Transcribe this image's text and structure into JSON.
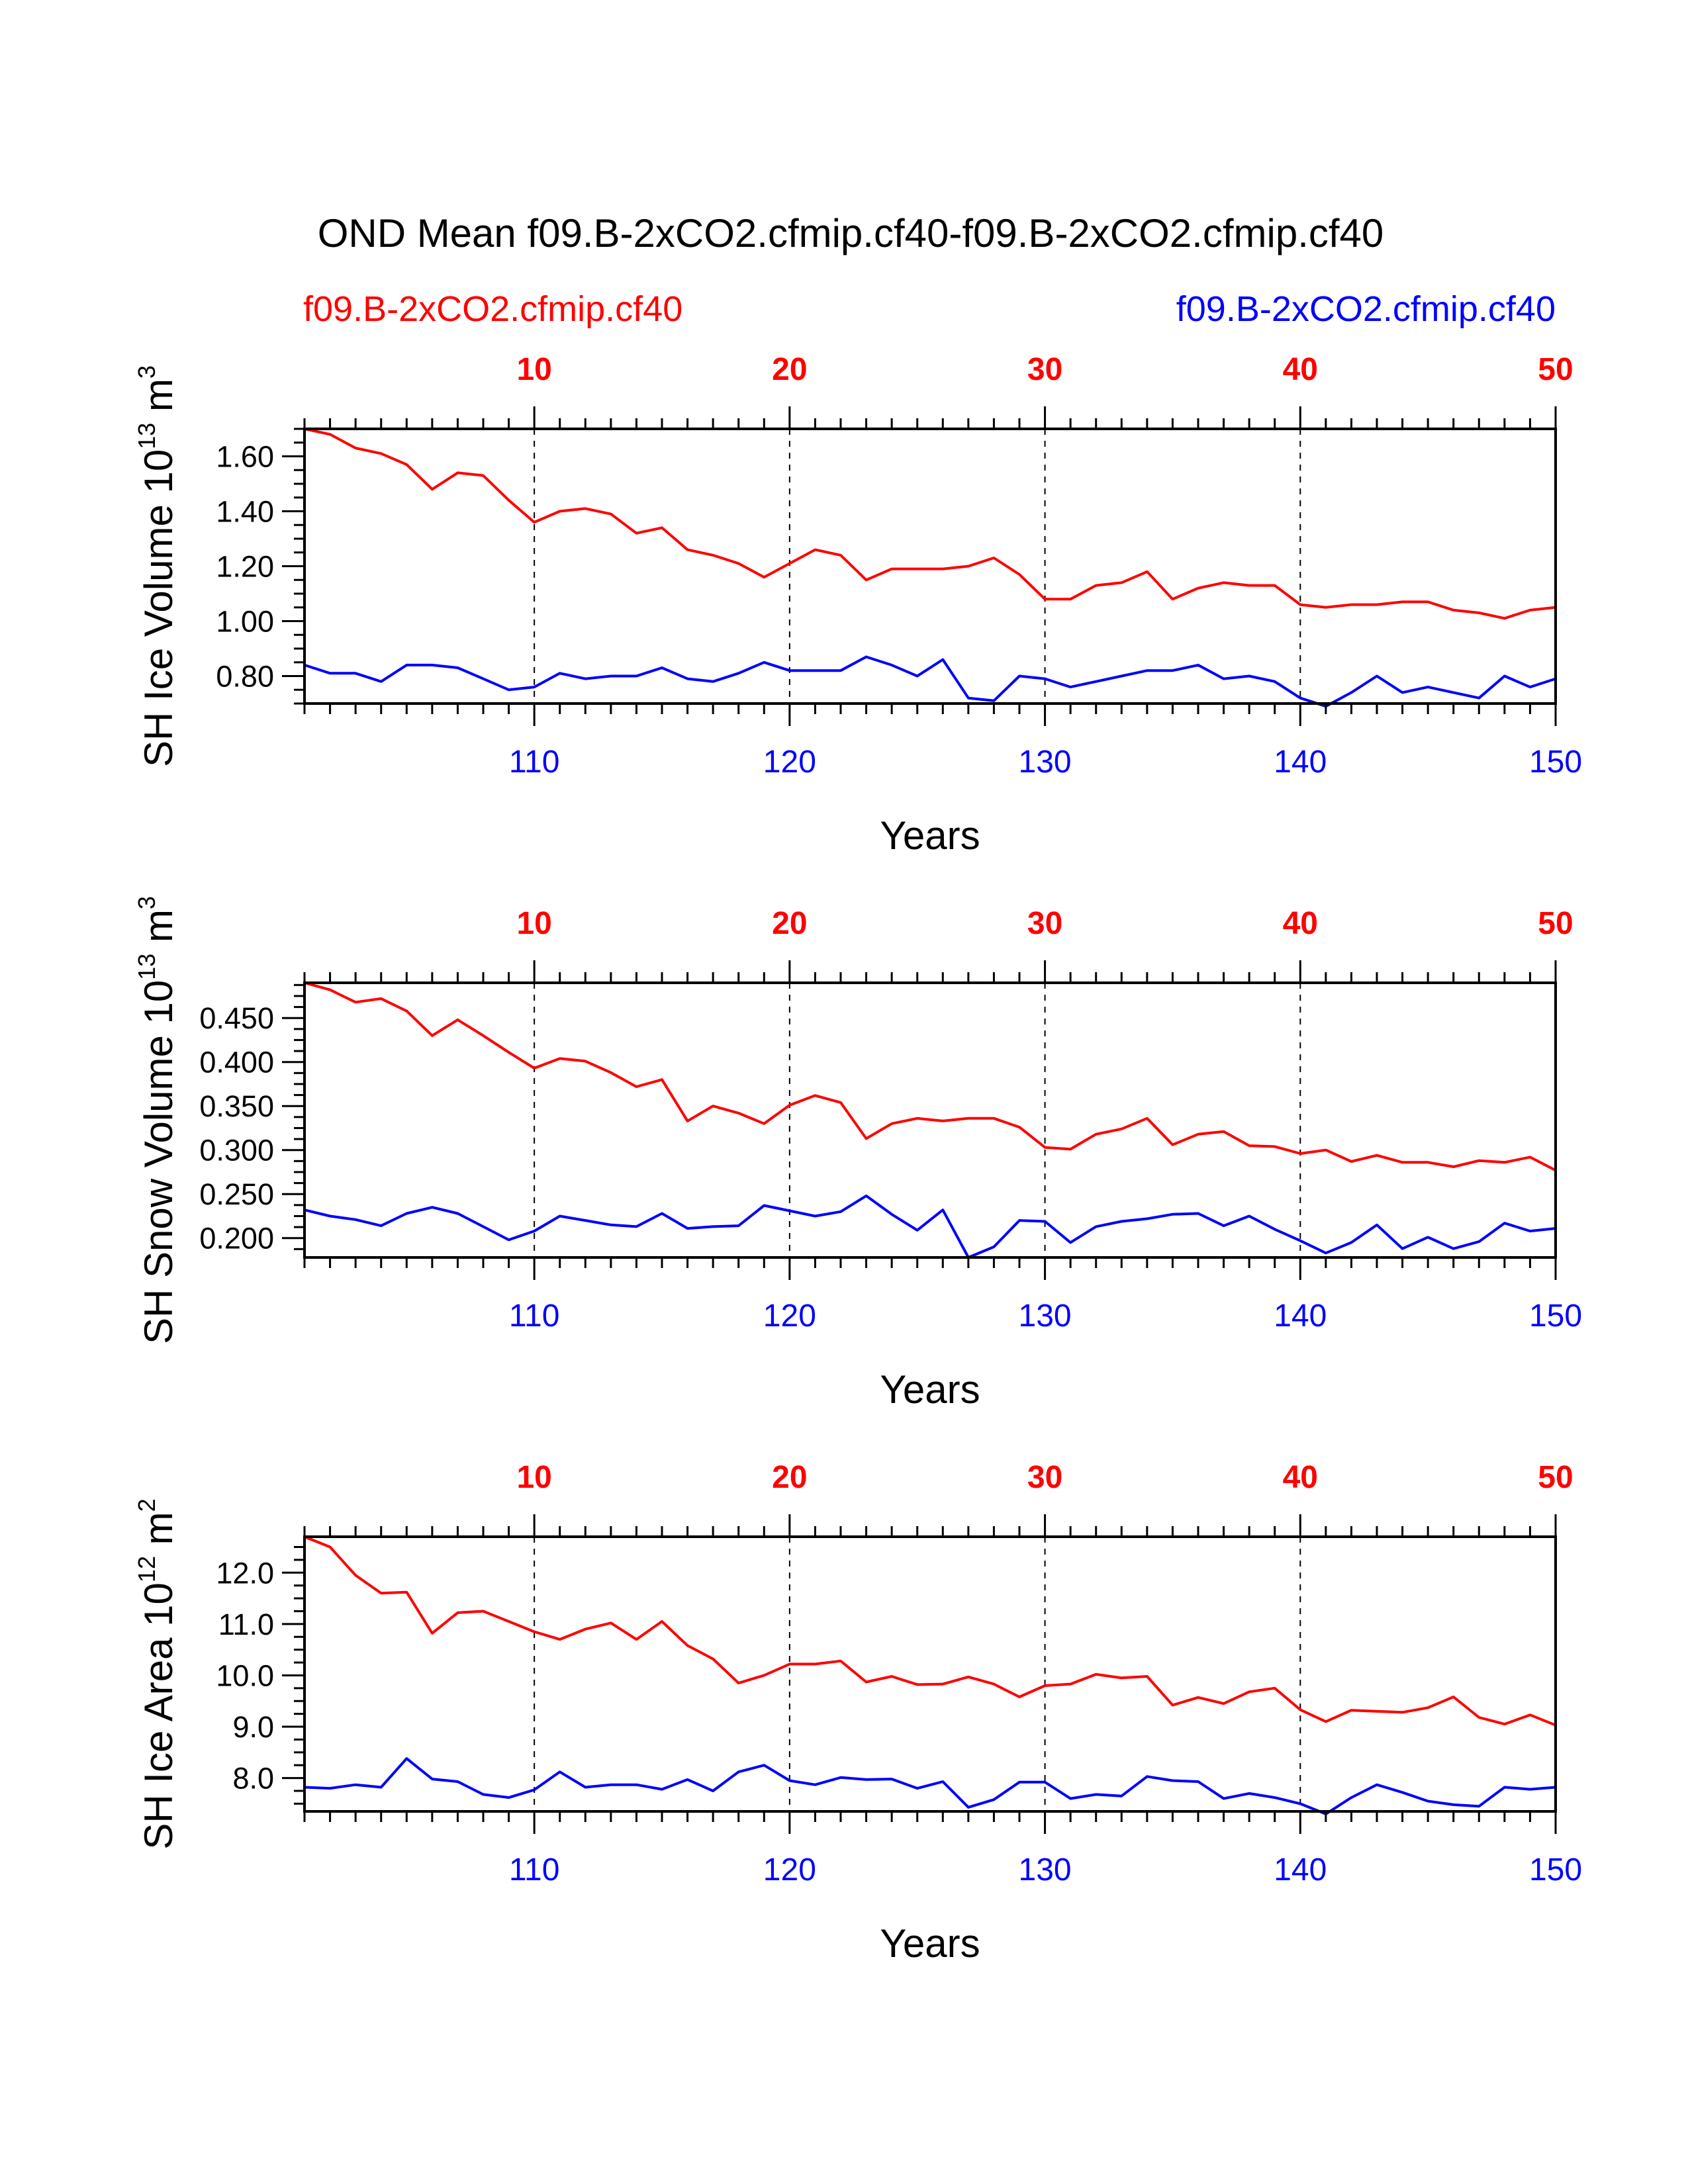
{
  "title": "OND Mean f09.B-2xCO2.cfmip.cf40-f09.B-2xCO2.cfmip.cf40",
  "legend": {
    "left": "f09.B-2xCO2.cfmip.cf40",
    "right": "f09.B-2xCO2.cfmip.cf40"
  },
  "colors": {
    "left_series": "#ff0000",
    "right_series": "#0000ff",
    "axis": "#000000"
  },
  "chart_data": [
    {
      "type": "line",
      "ylabel": "SH Ice Volume 10",
      "ylabel_exp": "13",
      "ylabel_unit": " m",
      "ylabel_unit_exp": "3",
      "xlabel": "Years",
      "xlim": [
        101,
        150
      ],
      "ylim": [
        0.7,
        1.7
      ],
      "yticks": [
        0.8,
        1.0,
        1.2,
        1.4,
        1.6
      ],
      "ytick_labels": [
        "0.80",
        "1.00",
        "1.20",
        "1.40",
        "1.60"
      ],
      "top_axis": {
        "ticks": [
          110,
          120,
          130,
          140,
          150
        ],
        "labels": [
          "10",
          "20",
          "30",
          "40",
          "50"
        ]
      },
      "bottom_axis": {
        "ticks": [
          110,
          120,
          130,
          140,
          150
        ],
        "labels": [
          "110",
          "120",
          "130",
          "140",
          "150"
        ]
      },
      "x": [
        101,
        102,
        103,
        104,
        105,
        106,
        107,
        108,
        109,
        110,
        111,
        112,
        113,
        114,
        115,
        116,
        117,
        118,
        119,
        120,
        121,
        122,
        123,
        124,
        125,
        126,
        127,
        128,
        129,
        130,
        131,
        132,
        133,
        134,
        135,
        136,
        137,
        138,
        139,
        140,
        141,
        142,
        143,
        144,
        145,
        146,
        147,
        148,
        149,
        150
      ],
      "series": [
        {
          "color": "#ff0000",
          "values": [
            1.7,
            1.68,
            1.63,
            1.61,
            1.57,
            1.48,
            1.54,
            1.53,
            1.44,
            1.36,
            1.4,
            1.41,
            1.39,
            1.32,
            1.34,
            1.26,
            1.24,
            1.21,
            1.16,
            1.21,
            1.26,
            1.24,
            1.15,
            1.19,
            1.19,
            1.19,
            1.2,
            1.23,
            1.17,
            1.08,
            1.08,
            1.13,
            1.14,
            1.18,
            1.08,
            1.12,
            1.14,
            1.13,
            1.13,
            1.06,
            1.05,
            1.06,
            1.06,
            1.07,
            1.07,
            1.04,
            1.03,
            1.01,
            1.04,
            1.05
          ]
        },
        {
          "color": "#0000ff",
          "values": [
            0.84,
            0.81,
            0.81,
            0.78,
            0.84,
            0.84,
            0.83,
            0.79,
            0.75,
            0.76,
            0.81,
            0.79,
            0.8,
            0.8,
            0.83,
            0.79,
            0.78,
            0.81,
            0.85,
            0.82,
            0.82,
            0.82,
            0.87,
            0.84,
            0.8,
            0.86,
            0.72,
            0.71,
            0.8,
            0.79,
            0.76,
            0.78,
            0.8,
            0.82,
            0.82,
            0.84,
            0.79,
            0.8,
            0.78,
            0.72,
            0.69,
            0.74,
            0.8,
            0.74,
            0.76,
            0.74,
            0.72,
            0.8,
            0.76,
            0.79
          ]
        }
      ]
    },
    {
      "type": "line",
      "ylabel": "SH Snow Volume 10",
      "ylabel_exp": "13",
      "ylabel_unit": " m",
      "ylabel_unit_exp": "3",
      "xlabel": "Years",
      "xlim": [
        101,
        150
      ],
      "ylim": [
        0.178,
        0.49
      ],
      "yticks": [
        0.2,
        0.25,
        0.3,
        0.35,
        0.4,
        0.45
      ],
      "ytick_labels": [
        "0.200",
        "0.250",
        "0.300",
        "0.350",
        "0.400",
        "0.450"
      ],
      "top_axis": {
        "ticks": [
          110,
          120,
          130,
          140,
          150
        ],
        "labels": [
          "10",
          "20",
          "30",
          "40",
          "50"
        ]
      },
      "bottom_axis": {
        "ticks": [
          110,
          120,
          130,
          140,
          150
        ],
        "labels": [
          "110",
          "120",
          "130",
          "140",
          "150"
        ]
      },
      "x": [
        101,
        102,
        103,
        104,
        105,
        106,
        107,
        108,
        109,
        110,
        111,
        112,
        113,
        114,
        115,
        116,
        117,
        118,
        119,
        120,
        121,
        122,
        123,
        124,
        125,
        126,
        127,
        128,
        129,
        130,
        131,
        132,
        133,
        134,
        135,
        136,
        137,
        138,
        139,
        140,
        141,
        142,
        143,
        144,
        145,
        146,
        147,
        148,
        149,
        150
      ],
      "series": [
        {
          "color": "#ff0000",
          "values": [
            0.49,
            0.482,
            0.468,
            0.472,
            0.458,
            0.43,
            0.448,
            0.43,
            0.411,
            0.393,
            0.404,
            0.401,
            0.388,
            0.372,
            0.38,
            0.333,
            0.35,
            0.342,
            0.33,
            0.351,
            0.362,
            0.354,
            0.313,
            0.33,
            0.336,
            0.333,
            0.336,
            0.336,
            0.326,
            0.303,
            0.301,
            0.318,
            0.324,
            0.336,
            0.306,
            0.318,
            0.321,
            0.305,
            0.304,
            0.296,
            0.3,
            0.287,
            0.294,
            0.286,
            0.286,
            0.281,
            0.288,
            0.286,
            0.292,
            0.277
          ]
        },
        {
          "color": "#0000ff",
          "values": [
            0.232,
            0.225,
            0.221,
            0.214,
            0.228,
            0.235,
            0.228,
            0.213,
            0.198,
            0.208,
            0.225,
            0.22,
            0.215,
            0.213,
            0.228,
            0.211,
            0.213,
            0.214,
            0.237,
            0.231,
            0.225,
            0.23,
            0.248,
            0.227,
            0.209,
            0.232,
            0.178,
            0.19,
            0.22,
            0.219,
            0.195,
            0.213,
            0.219,
            0.222,
            0.227,
            0.228,
            0.214,
            0.225,
            0.21,
            0.197,
            0.183,
            0.195,
            0.215,
            0.188,
            0.201,
            0.188,
            0.196,
            0.217,
            0.208,
            0.211
          ]
        }
      ]
    },
    {
      "type": "line",
      "ylabel": "SH Ice Area 10",
      "ylabel_exp": "12",
      "ylabel_unit": " m",
      "ylabel_unit_exp": "2",
      "xlabel": "Years",
      "xlim": [
        101,
        150
      ],
      "ylim": [
        7.35,
        12.7
      ],
      "yticks": [
        8.0,
        9.0,
        10.0,
        11.0,
        12.0
      ],
      "ytick_labels": [
        "8.0",
        "9.0",
        "10.0",
        "11.0",
        "12.0"
      ],
      "top_axis": {
        "ticks": [
          110,
          120,
          130,
          140,
          150
        ],
        "labels": [
          "10",
          "20",
          "30",
          "40",
          "50"
        ]
      },
      "bottom_axis": {
        "ticks": [
          110,
          120,
          130,
          140,
          150
        ],
        "labels": [
          "110",
          "120",
          "130",
          "140",
          "150"
        ]
      },
      "x": [
        101,
        102,
        103,
        104,
        105,
        106,
        107,
        108,
        109,
        110,
        111,
        112,
        113,
        114,
        115,
        116,
        117,
        118,
        119,
        120,
        121,
        122,
        123,
        124,
        125,
        126,
        127,
        128,
        129,
        130,
        131,
        132,
        133,
        134,
        135,
        136,
        137,
        138,
        139,
        140,
        141,
        142,
        143,
        144,
        145,
        146,
        147,
        148,
        149,
        150
      ],
      "series": [
        {
          "color": "#ff0000",
          "values": [
            12.7,
            12.5,
            11.95,
            11.6,
            11.62,
            10.82,
            11.22,
            11.25,
            11.05,
            10.85,
            10.7,
            10.9,
            11.02,
            10.7,
            11.05,
            10.58,
            10.32,
            9.85,
            10.0,
            10.22,
            10.22,
            10.28,
            9.87,
            9.98,
            9.82,
            9.83,
            9.97,
            9.83,
            9.58,
            9.8,
            9.83,
            10.02,
            9.95,
            9.98,
            9.42,
            9.57,
            9.45,
            9.68,
            9.75,
            9.33,
            9.1,
            9.32,
            9.3,
            9.28,
            9.37,
            9.58,
            9.18,
            9.05,
            9.23,
            9.03
          ]
        },
        {
          "color": "#0000ff",
          "values": [
            7.82,
            7.8,
            7.87,
            7.82,
            8.38,
            7.98,
            7.93,
            7.68,
            7.62,
            7.77,
            8.12,
            7.82,
            7.87,
            7.87,
            7.78,
            7.97,
            7.75,
            8.12,
            8.25,
            7.95,
            7.87,
            8.01,
            7.97,
            7.98,
            7.8,
            7.93,
            7.43,
            7.58,
            7.92,
            7.92,
            7.6,
            7.68,
            7.65,
            8.03,
            7.95,
            7.93,
            7.6,
            7.7,
            7.62,
            7.5,
            7.3,
            7.62,
            7.87,
            7.72,
            7.55,
            7.48,
            7.45,
            7.82,
            7.78,
            7.82
          ]
        }
      ]
    }
  ]
}
